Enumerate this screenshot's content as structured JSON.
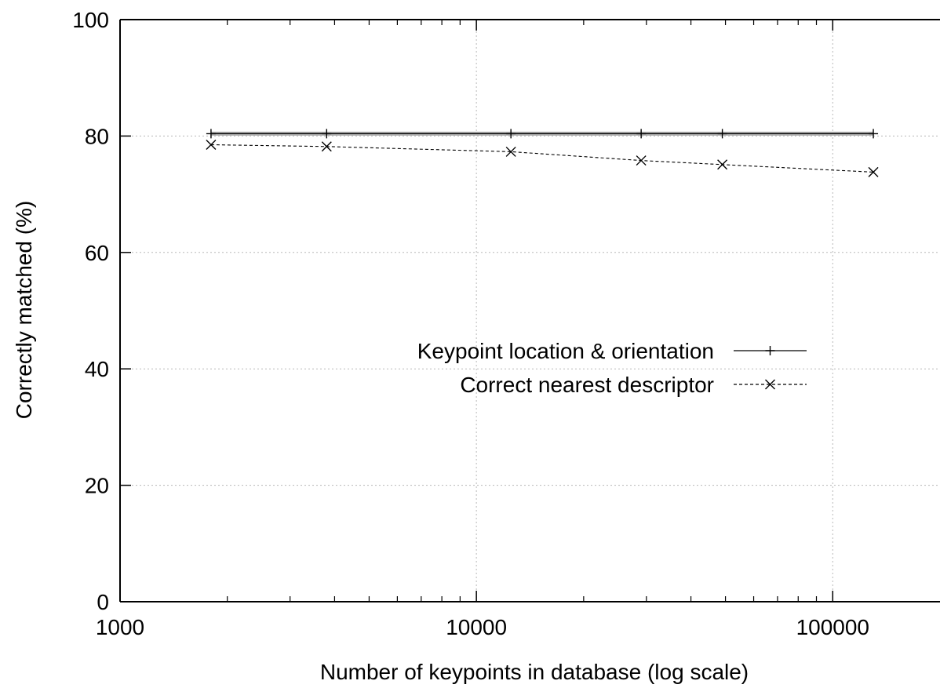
{
  "chart_data": {
    "type": "line",
    "title": "",
    "xlabel": "Number of keypoints in database (log scale)",
    "ylabel": "Correctly matched (%)",
    "xscale": "log",
    "xlim": [
      1000,
      200000
    ],
    "ylim": [
      0,
      100
    ],
    "grid": true,
    "legend_position": "center-right",
    "xticks": [
      1000,
      10000,
      100000
    ],
    "xtick_labels": [
      "1000",
      "10000",
      "100000"
    ],
    "yticks": [
      0,
      20,
      40,
      60,
      80,
      100
    ],
    "ytick_labels": [
      "0",
      "20",
      "40",
      "60",
      "80",
      "100"
    ],
    "series": [
      {
        "name": "Keypoint location & orientation",
        "x": [
          1800,
          3800,
          12500,
          29000,
          49000,
          130000
        ],
        "y": [
          80.4,
          80.4,
          80.4,
          80.4,
          80.4,
          80.4
        ],
        "marker": "plus",
        "line": "solid",
        "color": "#000000"
      },
      {
        "name": "Correct nearest descriptor",
        "x": [
          1800,
          3800,
          12500,
          29000,
          49000,
          130000
        ],
        "y": [
          78.5,
          78.2,
          77.3,
          75.8,
          75.1,
          73.8
        ],
        "marker": "x",
        "line": "dashed",
        "color": "#000000"
      }
    ]
  }
}
